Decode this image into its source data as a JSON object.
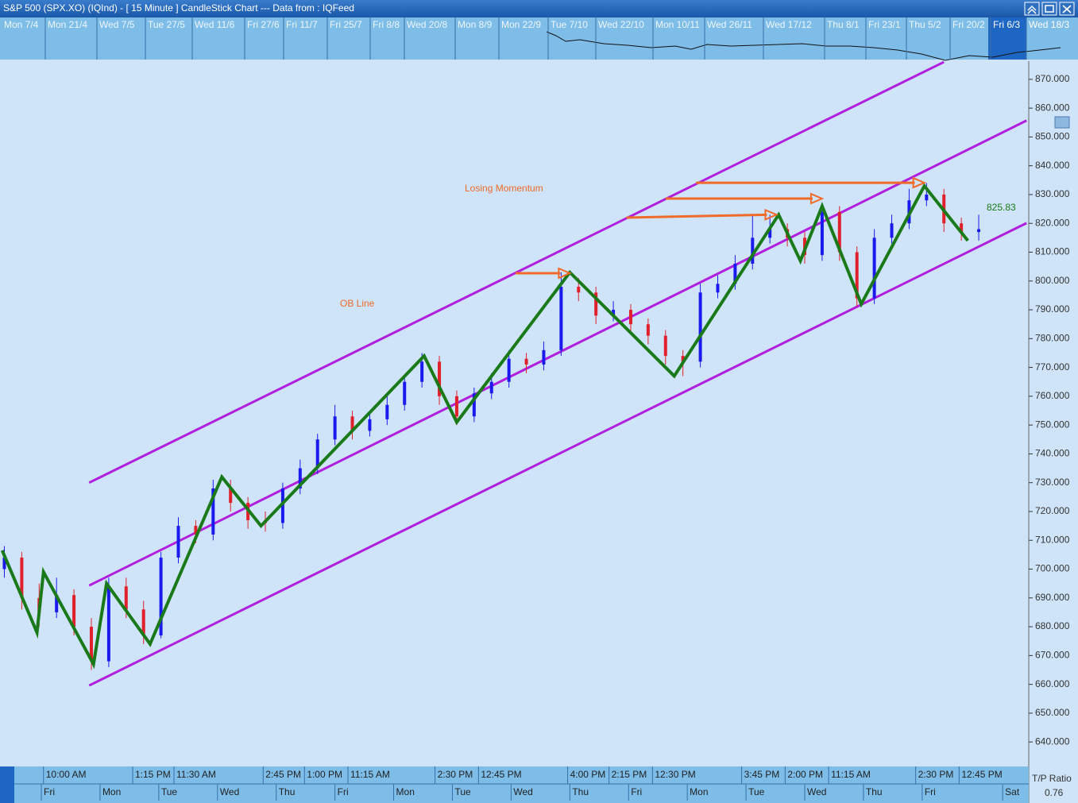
{
  "window": {
    "title": "S&P 500 (SPX.XO) (IQInd) -  [ 15 Minute ] CandleStick Chart --- Data from : IQFeed"
  },
  "overview": {
    "dates": [
      "Mon 7/4",
      "Mon 21/4",
      "Wed 7/5",
      "Tue 27/5",
      "Wed 11/6",
      "Fri 27/6",
      "Fri 11/7",
      "Fri 25/7",
      "Fri 8/8",
      "Wed 20/8",
      "Mon 8/9",
      "Mon 22/9",
      "Tue 7/10",
      "Wed 22/10",
      "Mon 10/11",
      "Wed 26/11",
      "Wed 17/12",
      "Thu 8/1",
      "Fri 23/1",
      "Thu 5/2",
      "Fri 20/2",
      "Fri 6/3",
      "Wed 18/3"
    ]
  },
  "chart_data": {
    "type": "candlestick",
    "up_color": "#1a1aee",
    "down_color": "#e0202a",
    "x": [
      2,
      10,
      18,
      26,
      34,
      42,
      50,
      58,
      66,
      74,
      82,
      90,
      98,
      106,
      114,
      122,
      130,
      138,
      146,
      154,
      162,
      170,
      178,
      186,
      194,
      202,
      210,
      218,
      226,
      234,
      242,
      250,
      258,
      266,
      274,
      282,
      290,
      298,
      306,
      314,
      322,
      330,
      338,
      346,
      354,
      362,
      370,
      378,
      386,
      394,
      402,
      410,
      418,
      426,
      434,
      442,
      450
    ],
    "open": [
      700,
      704,
      690,
      685,
      691,
      680,
      668,
      694,
      686,
      677,
      704,
      715,
      712,
      728,
      723,
      717,
      716,
      728,
      735,
      745,
      753,
      748,
      752,
      757,
      765,
      772,
      760,
      753,
      761,
      765,
      773,
      771,
      776,
      798,
      796,
      788,
      790,
      785,
      781,
      774,
      772,
      796,
      799,
      806,
      815,
      818,
      815,
      809,
      824,
      810,
      794,
      815,
      820,
      828,
      830,
      820,
      817
    ],
    "high": [
      708,
      706,
      695,
      697,
      693,
      683,
      697,
      697,
      689,
      706,
      718,
      717,
      731,
      731,
      725,
      720,
      730,
      738,
      747,
      757,
      755,
      754,
      760,
      767,
      775,
      774,
      762,
      763,
      768,
      776,
      775,
      779,
      803,
      801,
      798,
      793,
      792,
      787,
      783,
      776,
      799,
      802,
      809,
      823,
      823,
      820,
      817,
      827,
      826,
      812,
      818,
      823,
      832,
      834,
      832,
      822,
      823
    ],
    "low": [
      697,
      686,
      680,
      683,
      677,
      665,
      666,
      683,
      674,
      676,
      702,
      709,
      710,
      720,
      714,
      713,
      714,
      726,
      733,
      743,
      745,
      746,
      750,
      755,
      763,
      757,
      750,
      751,
      759,
      763,
      768,
      769,
      774,
      793,
      785,
      786,
      782,
      778,
      771,
      767,
      770,
      794,
      797,
      804,
      813,
      812,
      806,
      807,
      807,
      791,
      792,
      813,
      818,
      826,
      817,
      814,
      814
    ],
    "close": [
      704,
      690,
      685,
      691,
      680,
      668,
      694,
      686,
      677,
      704,
      715,
      712,
      728,
      723,
      717,
      716,
      728,
      735,
      745,
      753,
      748,
      752,
      757,
      765,
      772,
      760,
      753,
      761,
      765,
      773,
      771,
      776,
      798,
      796,
      788,
      790,
      785,
      781,
      774,
      772,
      796,
      799,
      806,
      815,
      818,
      815,
      809,
      824,
      810,
      794,
      815,
      820,
      828,
      830,
      820,
      817,
      818
    ],
    "xlim": [
      0,
      473
    ],
    "ylim": [
      631.5,
      876.3
    ],
    "yticks": [
      {
        "value": 640,
        "label": "640.000"
      },
      {
        "value": 650,
        "label": "650.000"
      },
      {
        "value": 660,
        "label": "660.000"
      },
      {
        "value": 670,
        "label": "670.000"
      },
      {
        "value": 680,
        "label": "680.000"
      },
      {
        "value": 690,
        "label": "690.000"
      },
      {
        "value": 700,
        "label": "700.000"
      },
      {
        "value": 710,
        "label": "710.000"
      },
      {
        "value": 720,
        "label": "720.000"
      },
      {
        "value": 730,
        "label": "730.000"
      },
      {
        "value": 740,
        "label": "740.000"
      },
      {
        "value": 750,
        "label": "750.000"
      },
      {
        "value": 760,
        "label": "760.000"
      },
      {
        "value": 770,
        "label": "770.000"
      },
      {
        "value": 780,
        "label": "780.000"
      },
      {
        "value": 790,
        "label": "790.000"
      },
      {
        "value": 800,
        "label": "800.000"
      },
      {
        "value": 810,
        "label": "810.000"
      },
      {
        "value": 820,
        "label": "820.000"
      },
      {
        "value": 830,
        "label": "830.000"
      },
      {
        "value": 840,
        "label": "840.000"
      },
      {
        "value": 850,
        "label": "850.000"
      },
      {
        "value": 860,
        "label": "860.000"
      },
      {
        "value": 870,
        "label": "870.000"
      }
    ],
    "xticks": [
      {
        "value": 20,
        "label": "10:00 AM"
      },
      {
        "value": 61,
        "label": "1:15 PM"
      },
      {
        "value": 80,
        "label": "11:30 AM"
      },
      {
        "value": 121,
        "label": "2:45 PM"
      },
      {
        "value": 140,
        "label": "1:00 PM"
      },
      {
        "value": 160,
        "label": "11:15 AM"
      },
      {
        "value": 200,
        "label": "2:30 PM"
      },
      {
        "value": 220,
        "label": "12:45 PM"
      },
      {
        "value": 261,
        "label": "4:00 PM"
      },
      {
        "value": 280,
        "label": "2:15 PM"
      },
      {
        "value": 300,
        "label": "12:30 PM"
      },
      {
        "value": 341,
        "label": "3:45 PM"
      },
      {
        "value": 361,
        "label": "2:00 PM"
      },
      {
        "value": 381,
        "label": "11:15 AM"
      },
      {
        "value": 421,
        "label": "2:30 PM"
      },
      {
        "value": 441,
        "label": "12:45 PM"
      }
    ],
    "day_ticks": [
      {
        "value": 19,
        "label": "Fri"
      },
      {
        "value": 46,
        "label": "Mon"
      },
      {
        "value": 73,
        "label": "Tue"
      },
      {
        "value": 100,
        "label": "Wed"
      },
      {
        "value": 127,
        "label": "Thu"
      },
      {
        "value": 154,
        "label": "Fri"
      },
      {
        "value": 181,
        "label": "Mon"
      },
      {
        "value": 208,
        "label": "Tue"
      },
      {
        "value": 235,
        "label": "Wed"
      },
      {
        "value": 262,
        "label": "Thu"
      },
      {
        "value": 289,
        "label": "Fri"
      },
      {
        "value": 316,
        "label": "Mon"
      },
      {
        "value": 343,
        "label": "Tue"
      },
      {
        "value": 370,
        "label": "Wed"
      },
      {
        "value": 397,
        "label": "Thu"
      },
      {
        "value": 424,
        "label": "Fri"
      },
      {
        "value": 461,
        "label": "Sat"
      }
    ],
    "zigzag": {
      "color": "#1a7a1a",
      "x": [
        1,
        17,
        20,
        43,
        49,
        69,
        102,
        120,
        195,
        210,
        262,
        310,
        358,
        368,
        378,
        396,
        425,
        445
      ],
      "values": [
        706.5,
        678,
        699,
        667,
        695,
        674,
        732,
        715,
        774,
        751,
        803,
        767,
        823,
        807,
        826,
        792,
        833,
        814
      ]
    },
    "channel_color": "#b01ee0",
    "channel_lines": [
      {
        "x": [
          41,
          434
        ],
        "values": [
          730,
          876
        ]
      },
      {
        "x": [
          41,
          472
        ],
        "values": [
          694.3,
          855.7
        ]
      },
      {
        "x": [
          41,
          472
        ],
        "values": [
          659.6,
          820.1
        ]
      }
    ],
    "arrow_color": "#f06a2a",
    "arrows": [
      {
        "x": [
          237,
          262
        ],
        "values": [
          802.7,
          802.7
        ]
      },
      {
        "x": [
          288,
          357
        ],
        "values": [
          822,
          823
        ]
      },
      {
        "x": [
          306,
          378
        ],
        "values": [
          828.6,
          828.6
        ]
      },
      {
        "x": [
          320,
          425
        ],
        "values": [
          834.1,
          834.1
        ]
      }
    ],
    "annotations": [
      "Losing Momentum",
      "OB Line"
    ],
    "last_price": 825.83,
    "ratio_label": "T/P Ratio",
    "ratio": 0.76
  }
}
